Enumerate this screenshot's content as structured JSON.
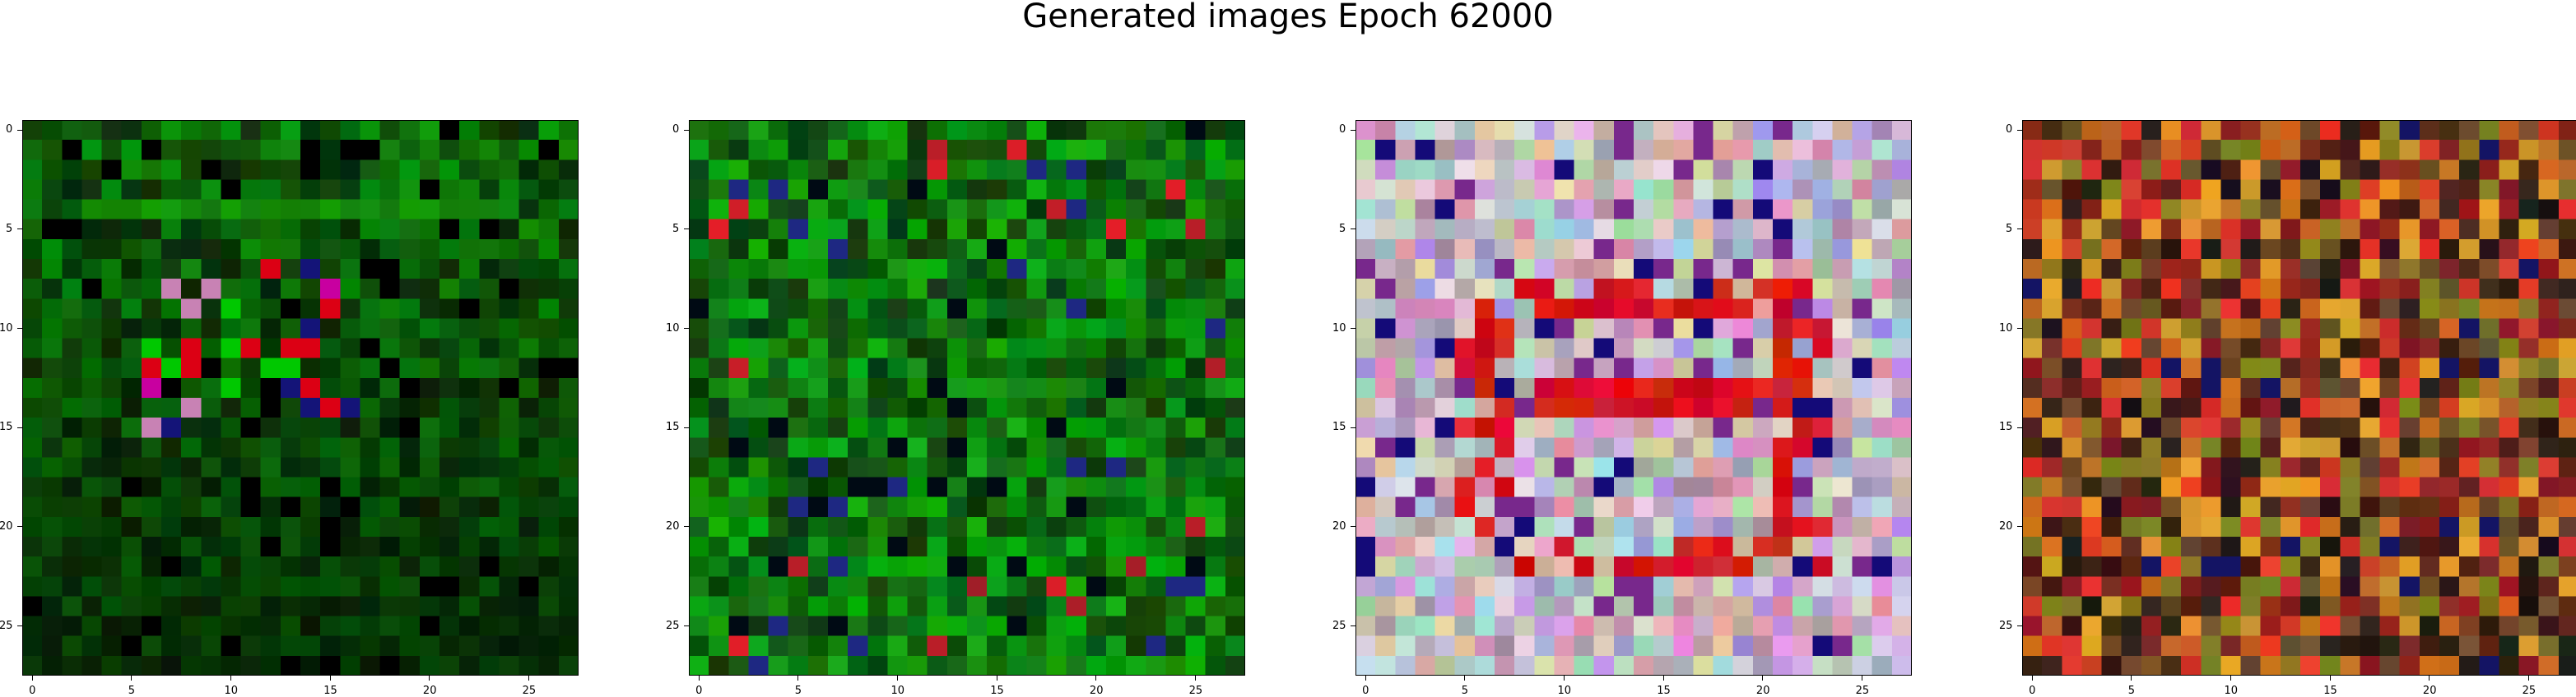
{
  "figure": {
    "title": "Generated images Epoch 62000"
  },
  "axes_ticks": {
    "x": [
      "0",
      "5",
      "10",
      "15",
      "20",
      "25"
    ],
    "y": [
      "0",
      "5",
      "10",
      "15",
      "20",
      "25"
    ]
  },
  "panels": [
    {
      "name": "generated-image-1",
      "palette": "green-dark",
      "grid": 28
    },
    {
      "name": "generated-image-2",
      "palette": "green",
      "grid": 28
    },
    {
      "name": "generated-image-3",
      "palette": "pastel-red",
      "grid": 28
    },
    {
      "name": "generated-image-4",
      "palette": "warm",
      "grid": 28
    }
  ]
}
